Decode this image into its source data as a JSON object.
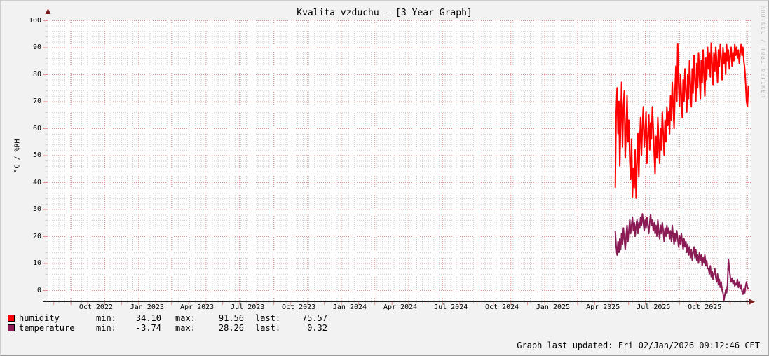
{
  "title": "Kvalita vzduchu - [3 Year Graph]",
  "watermark": "RRDTOOL / TOBI OETIKER",
  "footer": "Graph last updated: Fri 02/Jan/2026 09:12:46 CET",
  "legend": {
    "rows": [
      {
        "label": "humidity",
        "color": "#ff0000",
        "min_label": "min:",
        "min": "34.10",
        "max_label": "max:",
        "max": "91.56",
        "last_label": "last:",
        "last": "75.57"
      },
      {
        "label": "temperature",
        "color": "#8a1b55",
        "min_label": "min:",
        "min": "-3.74",
        "max_label": "max:",
        "max": "28.26",
        "last_label": "last:",
        "last": "0.32"
      }
    ]
  },
  "chart_data": {
    "type": "line",
    "title": "Kvalita vzduchu - [3 Year Graph]",
    "ylabel": "°C / %RH",
    "xlabel": "",
    "ylim": [
      -4.15,
      100
    ],
    "grid": {
      "minor_color": "#cccccc",
      "major_color": "#e88f8f",
      "axis_color": "#222222",
      "arrow_color": "#7a1d1d",
      "on": true
    },
    "legend_position": "bottom-left",
    "y_ticks": [
      "0",
      "10",
      "20",
      "30",
      "40",
      "50",
      "60",
      "70",
      "80",
      "90",
      "100"
    ],
    "x_range": {
      "start": "2022-07-21",
      "end": "2026-01-07"
    },
    "x_ticks": [
      {
        "label": "Oct 2022",
        "date": "2022-10-16"
      },
      {
        "label": "Jan 2023",
        "date": "2023-01-16"
      },
      {
        "label": "Apr 2023",
        "date": "2023-04-16"
      },
      {
        "label": "Jul 2023",
        "date": "2023-07-16"
      },
      {
        "label": "Oct 2023",
        "date": "2023-10-16"
      },
      {
        "label": "Jan 2024",
        "date": "2024-01-16"
      },
      {
        "label": "Apr 2024",
        "date": "2024-04-16"
      },
      {
        "label": "Jul 2024",
        "date": "2024-07-16"
      },
      {
        "label": "Oct 2024",
        "date": "2024-10-16"
      },
      {
        "label": "Jan 2025",
        "date": "2025-01-16"
      },
      {
        "label": "Apr 2025",
        "date": "2025-04-16"
      },
      {
        "label": "Jul 2025",
        "date": "2025-07-16"
      },
      {
        "label": "Oct 2025",
        "date": "2025-10-16"
      }
    ],
    "series": [
      {
        "name": "humidity",
        "color": "#ff0000",
        "width": 2,
        "start": "2025-05-08",
        "step_days": 1.63,
        "min": 34.1,
        "max": 91.56,
        "last": 75.57,
        "values": [
          38,
          66,
          75,
          58,
          70,
          46,
          62,
          77,
          53,
          68,
          74,
          49,
          60,
          72,
          55,
          63,
          48,
          41,
          56,
          34.5,
          45,
          38,
          52,
          34.1,
          47,
          58,
          42,
          55,
          64,
          50,
          61,
          68,
          53,
          58,
          66,
          47,
          57,
          65,
          52,
          62,
          56,
          68,
          60,
          51,
          43,
          57,
          49,
          64,
          55,
          47,
          60,
          52,
          66,
          58,
          50,
          63,
          55,
          68,
          61,
          66,
          58,
          72,
          63,
          77,
          68,
          60,
          74,
          83,
          70,
          91.2,
          76,
          68,
          80,
          72,
          64,
          78,
          70,
          82,
          74,
          66,
          80,
          71,
          85,
          76,
          68,
          82,
          73,
          87,
          78,
          70,
          84,
          75,
          88,
          79,
          71,
          85,
          77,
          89,
          80,
          72,
          86,
          78,
          90,
          82,
          88,
          79,
          91.56,
          84,
          76,
          88,
          81,
          90,
          85,
          77,
          89,
          83,
          91,
          86,
          78,
          90,
          84,
          88,
          80,
          91,
          85,
          89,
          82,
          87,
          90,
          83,
          88,
          85,
          91,
          87,
          90,
          86,
          89,
          84,
          88,
          91,
          87,
          90,
          85,
          82,
          77,
          70,
          68,
          75.57
        ]
      },
      {
        "name": "temperature",
        "color": "#8a1b55",
        "width": 2,
        "start": "2025-05-08",
        "step_days": 1.63,
        "min": -3.74,
        "max": 28.26,
        "last": 0.32,
        "values": [
          22,
          16,
          13,
          18,
          14,
          19,
          15,
          21,
          17,
          23,
          19,
          15,
          20,
          24,
          18,
          22,
          26,
          21,
          24,
          27,
          22,
          25,
          20,
          24,
          26,
          21,
          25,
          23,
          27,
          24,
          28.26,
          25,
          22,
          26,
          23,
          27,
          24,
          21,
          25,
          28,
          24,
          26,
          22,
          25,
          21,
          24,
          20,
          26,
          22,
          19,
          24,
          21,
          25,
          22,
          18,
          23,
          20,
          24,
          21,
          23,
          19,
          22,
          18,
          24,
          20,
          17,
          21,
          18,
          22,
          19,
          16,
          20,
          17,
          21,
          18,
          15,
          19,
          16,
          18,
          14,
          17,
          13,
          16,
          12,
          15,
          11,
          14,
          16,
          12,
          15,
          11,
          13,
          10,
          14,
          11,
          13,
          9,
          12,
          10,
          13,
          9,
          11,
          8,
          8,
          6,
          9,
          5,
          7,
          4,
          6,
          8,
          5,
          3,
          6,
          2,
          4,
          1,
          3,
          0,
          -1,
          -3.74,
          -2,
          0,
          -1,
          2,
          11.5,
          8,
          5,
          3,
          4.5,
          2.5,
          3.5,
          1.5,
          2.5,
          2,
          4,
          1,
          3,
          0.5,
          2,
          -0.5,
          -1.5,
          0.5,
          -1,
          1.5,
          3,
          1,
          0.32
        ]
      }
    ]
  }
}
